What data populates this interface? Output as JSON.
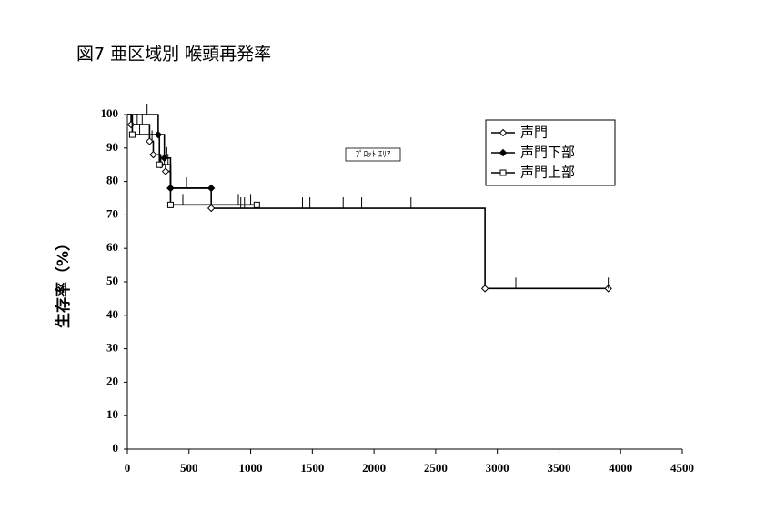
{
  "chart_data": {
    "type": "step",
    "title": "図7 亜区域別 喉頭再発率",
    "y_label": "生存率（%）",
    "annotation": "ﾌﾟﾛｯﾄ ｴﾘｱ",
    "xlim": [
      0,
      4500
    ],
    "xticks": [
      0,
      500,
      1000,
      1500,
      2000,
      2500,
      3000,
      3500,
      4000,
      4500
    ],
    "ylim": [
      0,
      100
    ],
    "yticks": [
      0,
      10,
      20,
      30,
      40,
      50,
      60,
      70,
      80,
      90,
      100
    ],
    "grid": false,
    "legend": "top-right",
    "series": [
      {
        "name": "声門",
        "color": "#000000",
        "marker": "open-diamond",
        "x": [
          0,
          30,
          180,
          210,
          270,
          310,
          350,
          680,
          2900,
          3900
        ],
        "values": [
          100,
          97,
          92,
          88,
          85,
          83,
          78,
          72,
          48,
          48
        ],
        "censor_x": [
          80,
          120,
          200,
          300,
          920,
          950,
          1420,
          1480,
          1750,
          1900,
          2300,
          3150,
          3900
        ]
      },
      {
        "name": "声門下部",
        "color": "#000000",
        "marker": "filled-diamond",
        "x": [
          0,
          250,
          300,
          350,
          680
        ],
        "values": [
          100,
          94,
          87,
          78,
          78
        ],
        "censor_x": [
          160,
          320,
          480
        ]
      },
      {
        "name": "声門上部",
        "color": "#000000",
        "marker": "open-square",
        "x": [
          0,
          40,
          260,
          350,
          1050
        ],
        "values": [
          100,
          94,
          85,
          73,
          73
        ],
        "censor_x": [
          100,
          330,
          450,
          900,
          1000
        ]
      }
    ]
  }
}
